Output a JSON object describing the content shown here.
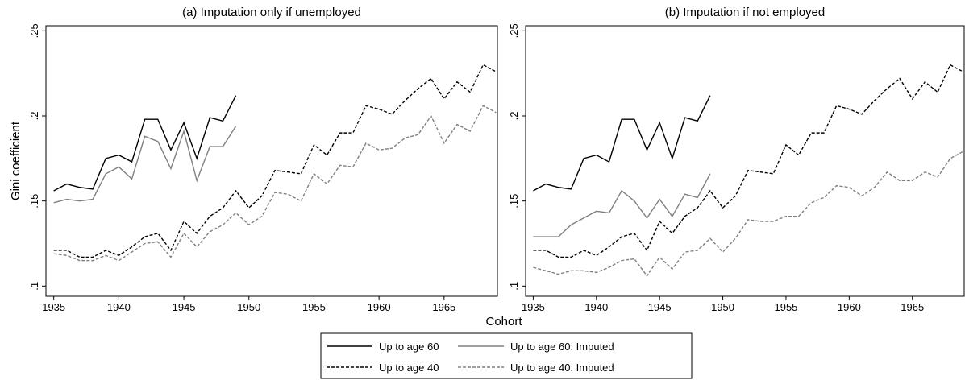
{
  "chart_data": [
    {
      "type": "line",
      "title": "(a) Imputation only if unemployed",
      "x_label": "Cohort",
      "y_label": "Gini coefficient",
      "xlim": [
        1934.4,
        1969.1
      ],
      "ylim": [
        0.094,
        0.253
      ],
      "xticks": [
        1935,
        1940,
        1945,
        1950,
        1955,
        1960,
        1965
      ],
      "yticks": [
        {
          "value": 0.1,
          "label": ".1"
        },
        {
          "value": 0.15,
          "label": ".15"
        },
        {
          "value": 0.2,
          "label": ".2"
        },
        {
          "value": 0.25,
          "label": ".25"
        }
      ],
      "series": [
        {
          "name": "Up to age 60",
          "color": "#000000",
          "dashed": false,
          "x": [
            1935,
            1936,
            1937,
            1938,
            1939,
            1940,
            1941,
            1942,
            1943,
            1944,
            1945,
            1946,
            1947,
            1948,
            1949
          ],
          "values": [
            0.156,
            0.16,
            0.158,
            0.157,
            0.175,
            0.177,
            0.173,
            0.198,
            0.198,
            0.18,
            0.196,
            0.175,
            0.199,
            0.197,
            0.212
          ]
        },
        {
          "name": "Up to age 60: Imputed",
          "color": "#808080",
          "dashed": false,
          "x": [
            1935,
            1936,
            1937,
            1938,
            1939,
            1940,
            1941,
            1942,
            1943,
            1944,
            1945,
            1946,
            1947,
            1948,
            1949
          ],
          "values": [
            0.149,
            0.151,
            0.15,
            0.151,
            0.166,
            0.17,
            0.163,
            0.188,
            0.185,
            0.169,
            0.191,
            0.162,
            0.182,
            0.182,
            0.194
          ]
        },
        {
          "name": "Up to age 40",
          "color": "#000000",
          "dashed": true,
          "x": [
            1935,
            1936,
            1937,
            1938,
            1939,
            1940,
            1941,
            1942,
            1943,
            1944,
            1945,
            1946,
            1947,
            1948,
            1949,
            1950,
            1951,
            1952,
            1953,
            1954,
            1955,
            1956,
            1957,
            1958,
            1959,
            1960,
            1961,
            1962,
            1963,
            1964,
            1965,
            1966,
            1967,
            1968,
            1969
          ],
          "values": [
            0.121,
            0.121,
            0.117,
            0.117,
            0.121,
            0.118,
            0.123,
            0.129,
            0.131,
            0.121,
            0.138,
            0.131,
            0.141,
            0.146,
            0.156,
            0.146,
            0.153,
            0.168,
            0.167,
            0.166,
            0.183,
            0.177,
            0.19,
            0.19,
            0.206,
            0.204,
            0.201,
            0.209,
            0.216,
            0.222,
            0.21,
            0.22,
            0.214,
            0.23,
            0.226
          ]
        },
        {
          "name": "Up to age 40: Imputed",
          "color": "#808080",
          "dashed": true,
          "x": [
            1935,
            1936,
            1937,
            1938,
            1939,
            1940,
            1941,
            1942,
            1943,
            1944,
            1945,
            1946,
            1947,
            1948,
            1949,
            1950,
            1951,
            1952,
            1953,
            1954,
            1955,
            1956,
            1957,
            1958,
            1959,
            1960,
            1961,
            1962,
            1963,
            1964,
            1965,
            1966,
            1967,
            1968,
            1969
          ],
          "values": [
            0.119,
            0.118,
            0.115,
            0.115,
            0.118,
            0.115,
            0.12,
            0.125,
            0.126,
            0.117,
            0.131,
            0.123,
            0.132,
            0.136,
            0.143,
            0.136,
            0.141,
            0.155,
            0.154,
            0.15,
            0.166,
            0.16,
            0.171,
            0.17,
            0.184,
            0.18,
            0.181,
            0.187,
            0.189,
            0.2,
            0.184,
            0.195,
            0.191,
            0.206,
            0.202
          ]
        }
      ]
    },
    {
      "type": "line",
      "title": "(b) Imputation if not employed",
      "xlim": [
        1934.4,
        1969.1
      ],
      "ylim": [
        0.094,
        0.253
      ],
      "xticks": [
        1935,
        1940,
        1945,
        1950,
        1955,
        1960,
        1965
      ],
      "yticks": [
        {
          "value": 0.1,
          "label": ".1"
        },
        {
          "value": 0.15,
          "label": ".15"
        },
        {
          "value": 0.2,
          "label": ".2"
        },
        {
          "value": 0.25,
          "label": ".25"
        }
      ],
      "series": [
        {
          "color": "#000000",
          "dashed": false,
          "x": [
            1935,
            1936,
            1937,
            1938,
            1939,
            1940,
            1941,
            1942,
            1943,
            1944,
            1945,
            1946,
            1947,
            1948,
            1949
          ],
          "values": [
            0.156,
            0.16,
            0.158,
            0.157,
            0.175,
            0.177,
            0.173,
            0.198,
            0.198,
            0.18,
            0.196,
            0.175,
            0.199,
            0.197,
            0.212
          ]
        },
        {
          "color": "#808080",
          "dashed": false,
          "x": [
            1935,
            1936,
            1937,
            1938,
            1939,
            1940,
            1941,
            1942,
            1943,
            1944,
            1945,
            1946,
            1947,
            1948,
            1949
          ],
          "values": [
            0.129,
            0.129,
            0.129,
            0.136,
            0.14,
            0.144,
            0.143,
            0.156,
            0.15,
            0.14,
            0.151,
            0.141,
            0.154,
            0.152,
            0.166
          ]
        },
        {
          "color": "#000000",
          "dashed": true,
          "x": [
            1935,
            1936,
            1937,
            1938,
            1939,
            1940,
            1941,
            1942,
            1943,
            1944,
            1945,
            1946,
            1947,
            1948,
            1949,
            1950,
            1951,
            1952,
            1953,
            1954,
            1955,
            1956,
            1957,
            1958,
            1959,
            1960,
            1961,
            1962,
            1963,
            1964,
            1965,
            1966,
            1967,
            1968,
            1969
          ],
          "values": [
            0.121,
            0.121,
            0.117,
            0.117,
            0.121,
            0.118,
            0.123,
            0.129,
            0.131,
            0.121,
            0.138,
            0.131,
            0.141,
            0.146,
            0.156,
            0.146,
            0.153,
            0.168,
            0.167,
            0.166,
            0.183,
            0.177,
            0.19,
            0.19,
            0.206,
            0.204,
            0.201,
            0.209,
            0.216,
            0.222,
            0.21,
            0.22,
            0.214,
            0.23,
            0.226
          ]
        },
        {
          "color": "#808080",
          "dashed": true,
          "x": [
            1935,
            1936,
            1937,
            1938,
            1939,
            1940,
            1941,
            1942,
            1943,
            1944,
            1945,
            1946,
            1947,
            1948,
            1949,
            1950,
            1951,
            1952,
            1953,
            1954,
            1955,
            1956,
            1957,
            1958,
            1959,
            1960,
            1961,
            1962,
            1963,
            1964,
            1965,
            1966,
            1967,
            1968,
            1969
          ],
          "values": [
            0.111,
            0.109,
            0.107,
            0.109,
            0.109,
            0.108,
            0.111,
            0.115,
            0.116,
            0.106,
            0.117,
            0.11,
            0.12,
            0.121,
            0.128,
            0.12,
            0.128,
            0.139,
            0.138,
            0.138,
            0.141,
            0.141,
            0.149,
            0.152,
            0.159,
            0.158,
            0.153,
            0.158,
            0.167,
            0.162,
            0.162,
            0.167,
            0.164,
            0.175,
            0.179
          ]
        }
      ]
    }
  ]
}
